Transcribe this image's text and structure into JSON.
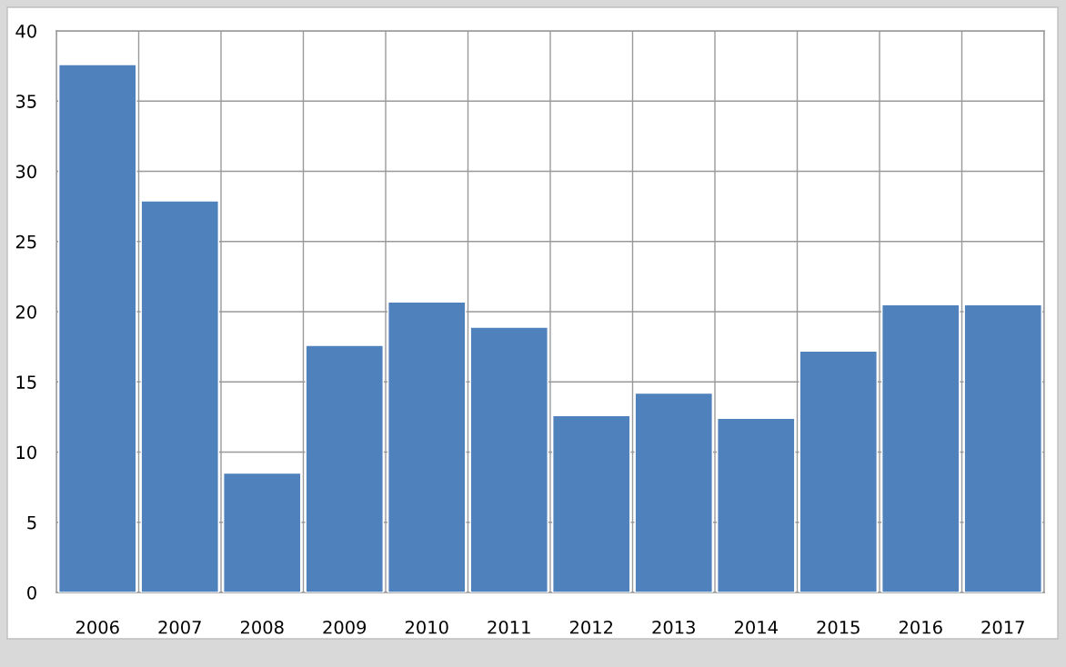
{
  "chart_data": {
    "type": "bar",
    "categories": [
      "2006",
      "2007",
      "2008",
      "2009",
      "2010",
      "2011",
      "2012",
      "2013",
      "2014",
      "2015",
      "2016",
      "2017"
    ],
    "values": [
      37.6,
      27.9,
      8.5,
      17.6,
      20.7,
      18.9,
      12.6,
      14.2,
      12.4,
      17.2,
      20.5,
      20.5
    ],
    "color": "#4f81bd",
    "ylim": [
      0,
      40
    ],
    "yticks": [
      0,
      5,
      10,
      15,
      20,
      25,
      30,
      35,
      40
    ],
    "grid": true
  }
}
